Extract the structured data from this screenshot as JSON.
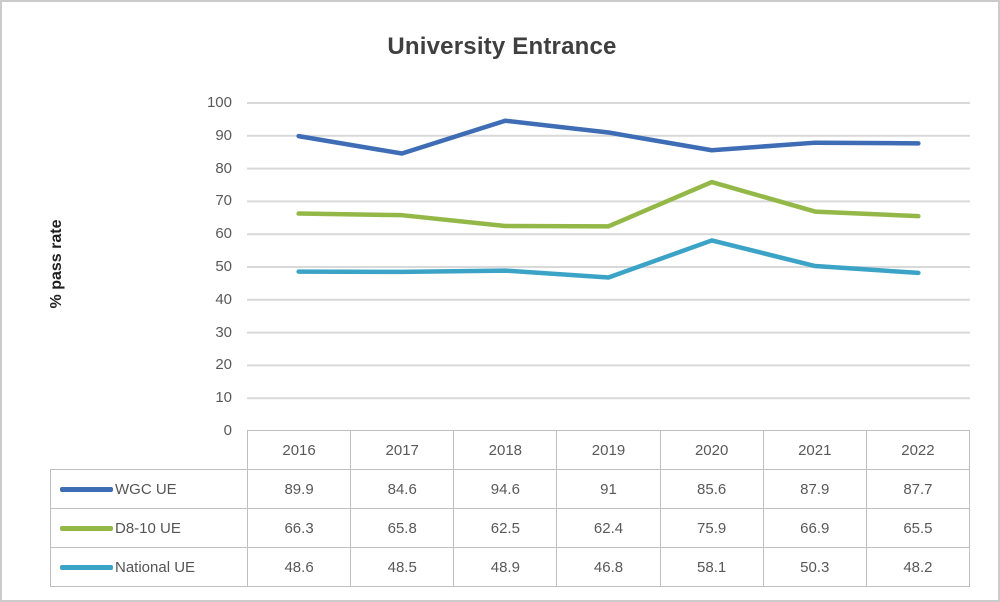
{
  "chart": {
    "title": "University Entrance",
    "ylabel": "% pass rate"
  },
  "chart_data": {
    "type": "line",
    "title": "University Entrance",
    "xlabel": "",
    "ylabel": "% pass rate",
    "categories": [
      "2016",
      "2017",
      "2018",
      "2019",
      "2020",
      "2021",
      "2022"
    ],
    "series": [
      {
        "name": "WGC UE",
        "color": "#3e6db5",
        "values": [
          89.9,
          84.6,
          94.6,
          91,
          85.6,
          87.9,
          87.7
        ]
      },
      {
        "name": "D8-10 UE",
        "color": "#93b847",
        "values": [
          66.3,
          65.8,
          62.5,
          62.4,
          75.9,
          66.9,
          65.5
        ]
      },
      {
        "name": "National UE",
        "color": "#3ba3c6",
        "values": [
          48.6,
          48.5,
          48.9,
          46.8,
          58.1,
          50.3,
          48.2
        ]
      }
    ],
    "ylim": [
      0,
      100
    ],
    "ytick_step": 10,
    "grid": true,
    "legend_position": "left-of-data-table",
    "colors": {
      "gridline": "#d9d9d9",
      "table_border": "#bfbfbf",
      "tick_text": "#595959",
      "table_text": "#595959",
      "title_text": "#3f3f3f"
    }
  }
}
